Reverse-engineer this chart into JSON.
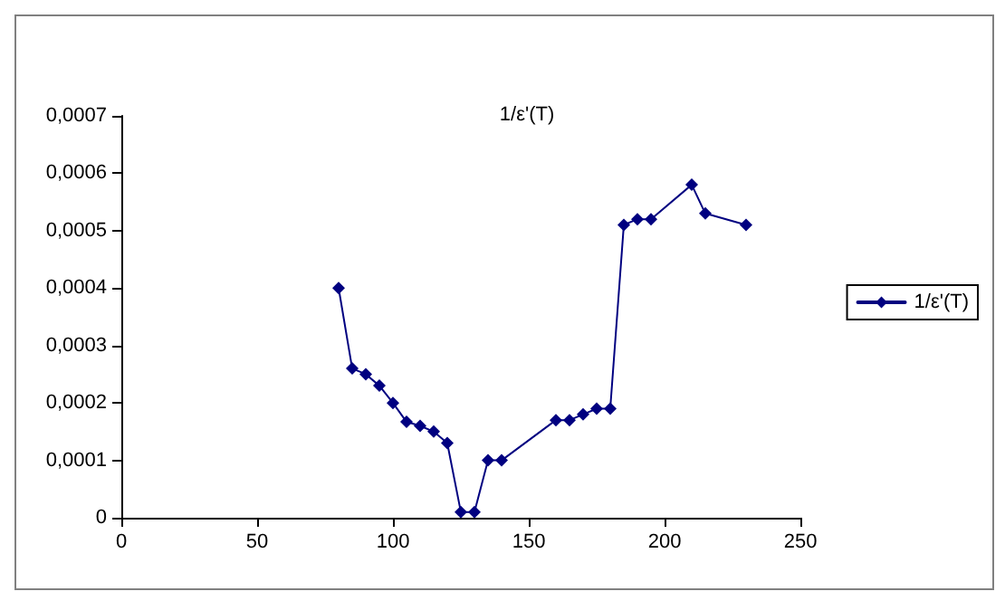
{
  "chart_data": {
    "type": "line",
    "title": "1/ε'(T)",
    "x": [
      80,
      85,
      90,
      95,
      100,
      105,
      110,
      115,
      120,
      125,
      130,
      135,
      140,
      160,
      165,
      170,
      175,
      180,
      185,
      190,
      195,
      210,
      215,
      230
    ],
    "series": [
      {
        "name": "1/ε'(T)",
        "color": "#000080",
        "values": [
          0.0004,
          0.00026,
          0.00025,
          0.00023,
          0.0002,
          0.000167,
          0.00016,
          0.00015,
          0.00013,
          1e-05,
          1e-05,
          0.0001,
          0.0001,
          0.00017,
          0.00017,
          0.00018,
          0.00019,
          0.00019,
          0.00051,
          0.00052,
          0.00052,
          0.00058,
          0.00053,
          0.00051
        ]
      }
    ],
    "xlim": [
      0,
      250
    ],
    "xticks": [
      0,
      50,
      100,
      150,
      200,
      250
    ],
    "ylim": [
      0,
      0.0007
    ],
    "yticks": [
      {
        "value": 0,
        "label": "0"
      },
      {
        "value": 0.0001,
        "label": "0,0001"
      },
      {
        "value": 0.0002,
        "label": "0,0002"
      },
      {
        "value": 0.0003,
        "label": "0,0003"
      },
      {
        "value": 0.0004,
        "label": "0,0004"
      },
      {
        "value": 0.0005,
        "label": "0,0005"
      },
      {
        "value": 0.0006,
        "label": "0,0006"
      },
      {
        "value": 0.0007,
        "label": "0,0007"
      }
    ],
    "grid": false,
    "legend": "right",
    "marker": "diamond",
    "line_style": "solid"
  }
}
